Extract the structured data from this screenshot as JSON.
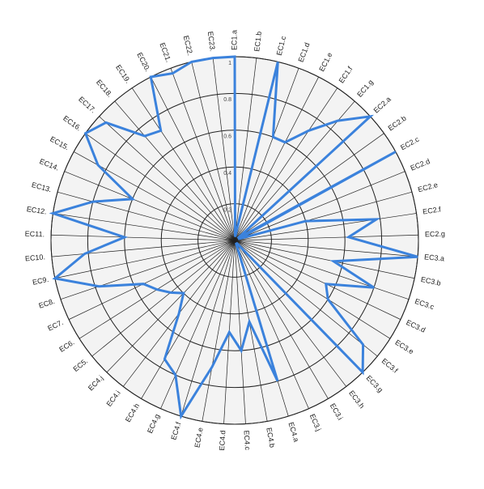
{
  "chart_data": {
    "type": "radar",
    "categories": [
      "EC1.a",
      "EC1.b",
      "EC1.c",
      "EC1.d",
      "EC1.e",
      "EC1.f",
      "EC1.g",
      "EC2.a",
      "EC2.b",
      "EC2.c",
      "EC2.d",
      "EC2.e",
      "EC2.f",
      "EC2.g",
      "EC3.a",
      "EC3.b",
      "EC3.c",
      "EC3.d",
      "EC3.e",
      "EC3.f",
      "EC3.g",
      "EC3.h",
      "EC3.i",
      "EC3.j",
      "EC4.a",
      "EC4.b",
      "EC4.c",
      "EC4.d",
      "EC4.e",
      "EC4.f",
      "EC4.g",
      "EC4.h",
      "EC4.i",
      "EC4.j",
      "EC5.",
      "EC6.",
      "EC7.",
      "EC8.",
      "EC9.",
      "EC10.",
      "EC11.",
      "EC12.",
      "EC13.",
      "EC14.",
      "EC15.",
      "EC16.",
      "EC17.",
      "EC18.",
      "EC19.",
      "EC20.",
      "EC21.",
      "EC22.",
      "EC23."
    ],
    "values": [
      1,
      0.02,
      1,
      0.6,
      0.6,
      0.72,
      0.86,
      1,
      0.02,
      1,
      0.02,
      0.4,
      0.78,
      0.62,
      1,
      0.55,
      0.8,
      0.55,
      0.6,
      0.9,
      1,
      0.02,
      0.02,
      0.02,
      0.8,
      0.45,
      0.6,
      0.5,
      0.7,
      1,
      0.8,
      0.75,
      0.5,
      0.4,
      0.45,
      0.5,
      0.55,
      0.78,
      1,
      0.82,
      0.6,
      1,
      0.8,
      0.6,
      0.85,
      1,
      0.95,
      0.75,
      0.72,
      1,
      0.97,
      1,
      1
    ],
    "color": "#3b82dc",
    "ylim": [
      0,
      1
    ],
    "yticks": [
      0.2,
      0.4,
      0.6,
      0.8,
      1
    ],
    "grid": true
  }
}
